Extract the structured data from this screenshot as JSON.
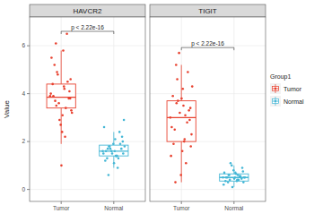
{
  "chart_data": {
    "type": "box",
    "y_label": "Value",
    "legend_title": "Group1",
    "legend": "right",
    "grid": true,
    "categories": [
      "Tumor",
      "Normal"
    ],
    "ylim": [
      -0.5,
      7.2
    ],
    "yticks": [
      0,
      2,
      4,
      6
    ],
    "series": [
      {
        "name": "Tumor",
        "color": "#e8412f"
      },
      {
        "name": "Normal",
        "color": "#45b7d6"
      }
    ],
    "panels": [
      {
        "title": "HAVCR2",
        "annotation": "p < 2.22e-16",
        "boxes": [
          {
            "min": 1.9,
            "q1": 3.4,
            "median": 3.85,
            "q3": 4.4,
            "max": 5.8,
            "points": [
              3.9,
              4.2,
              3.5,
              4.6,
              3.1,
              5.2,
              3.8,
              2.7,
              4.4,
              6.5,
              3.6,
              4.0,
              2.2,
              4.9,
              3.3,
              5.8,
              3.7,
              4.1,
              1.0,
              3.9,
              4.5,
              2.9,
              5.5,
              3.4,
              4.8,
              3.2,
              4.3,
              6.1,
              3.8,
              2.4
            ]
          },
          {
            "min": 0.9,
            "q1": 1.4,
            "median": 1.6,
            "q3": 1.85,
            "max": 2.4,
            "points": [
              1.6,
              1.4,
              1.8,
              1.5,
              2.1,
              1.3,
              1.7,
              1.9,
              1.2,
              2.4,
              1.6,
              1.5,
              0.9,
              1.8,
              2.9,
              1.4,
              1.7,
              2.2,
              1.1,
              1.6,
              1.9,
              1.5,
              2.6,
              1.3,
              1.7,
              1.8,
              1.4,
              0.6,
              2.0,
              1.6
            ]
          }
        ]
      },
      {
        "title": "TIGIT",
        "annotation": "p < 2.22e-16",
        "boxes": [
          {
            "min": 0.3,
            "q1": 2.0,
            "median": 3.0,
            "q3": 3.7,
            "max": 5.2,
            "points": [
              3.0,
              2.1,
              3.6,
              1.8,
              4.2,
              2.5,
              3.3,
              0.6,
              3.9,
              2.8,
              5.7,
              1.4,
              3.1,
              4.6,
              2.3,
              3.5,
              0.3,
              2.9,
              3.8,
              1.9,
              4.9,
              3.2,
              2.6,
              1.1,
              3.7,
              4.3,
              2.0,
              5.2,
              3.4,
              1.6
            ]
          },
          {
            "min": 0.1,
            "q1": 0.35,
            "median": 0.5,
            "q3": 0.65,
            "max": 1.0,
            "points": [
              0.5,
              0.4,
              0.6,
              0.3,
              0.7,
              0.5,
              0.45,
              0.8,
              0.35,
              0.55,
              1.0,
              0.2,
              0.6,
              0.4,
              0.5,
              0.65,
              0.3,
              0.9,
              0.45,
              0.5,
              0.55,
              0.1,
              0.7,
              0.4,
              1.1,
              0.5,
              0.35,
              0.6,
              0.75,
              0.5
            ]
          }
        ]
      }
    ]
  }
}
